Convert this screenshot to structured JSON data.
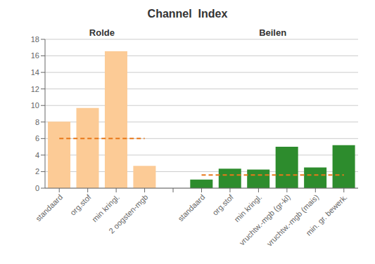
{
  "chart_data": {
    "type": "bar",
    "title": "Channel  Index",
    "categories": [
      "standaard",
      "org.stof",
      "min kringl.",
      "2 oogsten-mgb",
      "standaard",
      "org.stof",
      "min kringl.",
      "vruchtw.-mgb (gr-kl)",
      "vruchtw.-mgb (mais)",
      "min. gr. bewerk."
    ],
    "values": [
      8.05,
      9.7,
      16.55,
      2.7,
      1.05,
      2.35,
      2.25,
      5.0,
      2.5,
      5.2
    ],
    "ylim": [
      0,
      18
    ],
    "yticks": [
      0,
      2,
      4,
      6,
      8,
      10,
      12,
      14,
      16,
      18
    ],
    "grid": true,
    "groups": [
      {
        "label": "Rolde",
        "count": 4,
        "color": "#FCCB96",
        "reference_line": {
          "value": 6.0,
          "color": "#E8781A",
          "line_style": "dashed"
        }
      },
      {
        "label": "Beilen",
        "count": 6,
        "color": "#2d8c2d",
        "reference_line": {
          "value": 1.6,
          "color": "#E8781A",
          "line_style": "dashed"
        }
      }
    ]
  }
}
